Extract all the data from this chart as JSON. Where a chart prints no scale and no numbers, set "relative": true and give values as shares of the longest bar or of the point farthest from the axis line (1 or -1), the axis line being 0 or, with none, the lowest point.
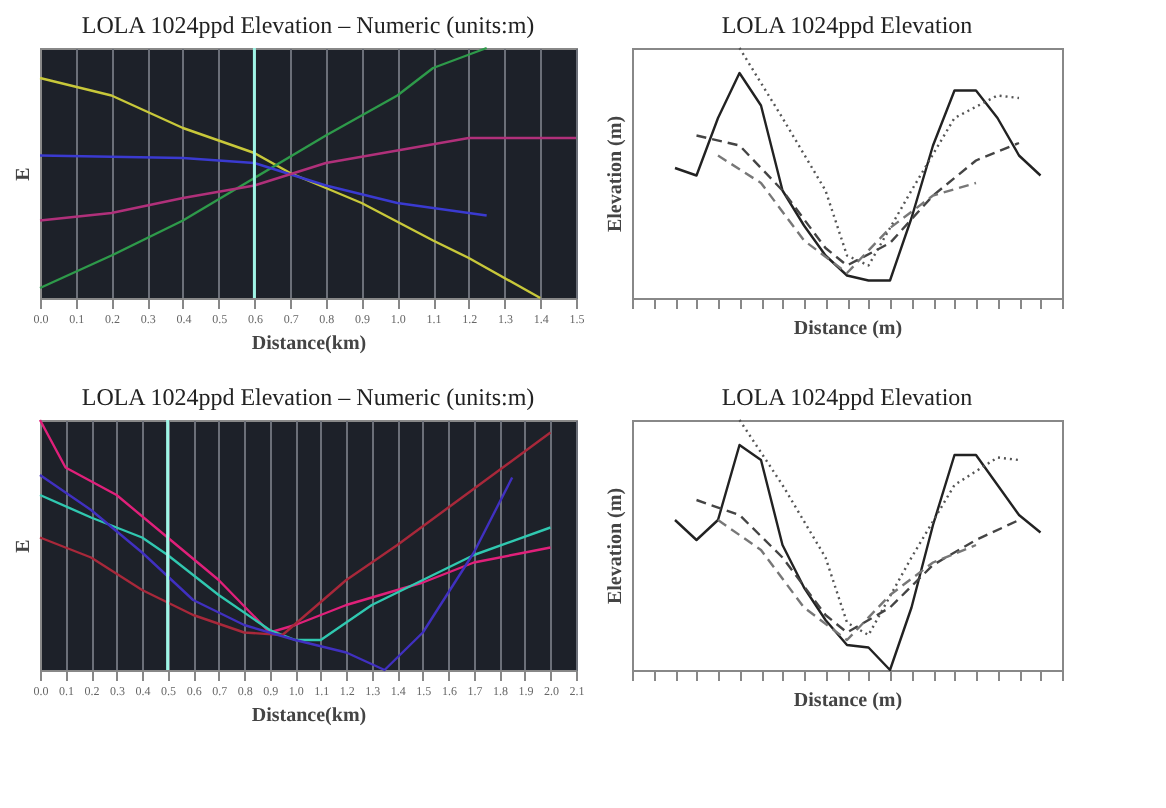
{
  "chart_data": [
    {
      "type": "line",
      "title": "LOLA 1024ppd Elevation – Numeric (units:m)",
      "xlabel": "Distance(km)",
      "ylabel": "E",
      "relative": true,
      "grid": "x",
      "tick_labels": "x",
      "xlim": [
        0,
        1.5
      ],
      "xticks": [
        {
          "value": 0,
          "label": "0.0"
        },
        0.1,
        0.2,
        0.3,
        0.4,
        0.5,
        0.6,
        0.7,
        0.8,
        0.9,
        {
          "value": 1,
          "label": "1.0"
        },
        1.1,
        1.2,
        1.3,
        1.4,
        1.5
      ],
      "ref_lines": [
        {
          "axis": "x",
          "value": 0.6,
          "color": "#9ff5e6"
        }
      ],
      "series": [
        {
          "color": "#c8c83a",
          "x": [
            0,
            0.2,
            0.4,
            0.6,
            0.7,
            0.9,
            1.1,
            1.2,
            1.4
          ],
          "values": [
            0.88,
            0.81,
            0.68,
            0.58,
            0.5,
            0.38,
            0.23,
            0.16,
            0
          ]
        },
        {
          "color": "#2e9a4a",
          "x": [
            0,
            0.2,
            0.4,
            0.6,
            0.8,
            1.0,
            1.1,
            1.25
          ],
          "values": [
            0.04,
            0.17,
            0.31,
            0.48,
            0.65,
            0.81,
            0.92,
            1.0
          ]
        },
        {
          "color": "#3a3ad0",
          "x": [
            0,
            0.4,
            0.6,
            0.8,
            1.0,
            1.25
          ],
          "values": [
            0.57,
            0.56,
            0.54,
            0.45,
            0.38,
            0.33
          ]
        },
        {
          "color": "#b0307a",
          "x": [
            0,
            0.2,
            0.4,
            0.6,
            0.8,
            1.0,
            1.2,
            1.5
          ],
          "values": [
            0.31,
            0.34,
            0.4,
            0.45,
            0.54,
            0.59,
            0.64,
            0.64
          ]
        }
      ]
    },
    {
      "type": "line",
      "title": "LOLA 1024ppd Elevation",
      "xlabel": "Distance (m)",
      "ylabel": "Elevation (m)",
      "relative": true,
      "grid": false,
      "tick_labels": false,
      "categories": [
        null,
        null,
        null,
        null,
        null,
        null,
        null,
        null,
        null,
        null,
        null,
        null,
        null,
        null,
        null,
        null,
        null,
        null,
        null,
        null,
        null
      ],
      "series": [
        {
          "color": "#222222",
          "line_style": "solid",
          "values": [
            null,
            null,
            0.52,
            0.49,
            0.72,
            0.9,
            0.77,
            0.43,
            0.29,
            0.17,
            0.09,
            0.07,
            0.07,
            0.32,
            0.61,
            0.83,
            0.83,
            0.72,
            0.57,
            0.49,
            null
          ]
        },
        {
          "color": "#555555",
          "line_style": "dotted",
          "values": [
            null,
            null,
            null,
            null,
            null,
            1.0,
            null,
            0.72,
            null,
            0.43,
            0.17,
            0.13,
            null,
            0.43,
            null,
            0.72,
            null,
            0.81,
            0.8,
            null,
            null
          ]
        },
        {
          "color": "#444444",
          "line_style": "dashed",
          "values": [
            null,
            null,
            null,
            0.65,
            null,
            0.61,
            null,
            0.43,
            null,
            0.2,
            0.13,
            null,
            0.22,
            null,
            0.41,
            null,
            0.55,
            null,
            0.62,
            null,
            null
          ]
        },
        {
          "color": "#777777",
          "line_style": "dashed",
          "values": [
            null,
            null,
            null,
            null,
            0.57,
            null,
            0.46,
            null,
            0.23,
            null,
            0.1,
            null,
            0.28,
            null,
            0.41,
            null,
            0.46,
            null,
            null,
            null,
            null
          ]
        }
      ]
    },
    {
      "type": "line",
      "title": "LOLA 1024ppd Elevation – Numeric (units:m)",
      "xlabel": "Distance(km)",
      "ylabel": "E",
      "relative": true,
      "grid": "x",
      "tick_labels": "x",
      "xlim": [
        0,
        2.1
      ],
      "xticks": [
        {
          "value": 0,
          "label": "0.0"
        },
        0.1,
        0.2,
        0.3,
        0.4,
        0.5,
        0.6,
        0.7,
        0.8,
        0.9,
        {
          "value": 1,
          "label": "1.0"
        },
        1.1,
        1.2,
        1.3,
        1.4,
        1.5,
        1.6,
        1.7,
        1.8,
        1.9,
        {
          "value": 2,
          "label": "2.0"
        },
        2.1
      ],
      "ref_lines": [
        {
          "axis": "x",
          "value": 0.5,
          "color": "#9ff5e6"
        }
      ],
      "series": [
        {
          "color": "#e0207a",
          "x": [
            0,
            0.1,
            0.3,
            0.5,
            0.7,
            0.9,
            1.0,
            1.2,
            1.5,
            1.7,
            1.9,
            2.0
          ],
          "values": [
            1.0,
            0.81,
            0.7,
            0.53,
            0.36,
            0.15,
            0.18,
            0.26,
            0.35,
            0.43,
            0.47,
            0.49
          ]
        },
        {
          "color": "#30c8b0",
          "x": [
            0,
            0.2,
            0.4,
            0.5,
            0.7,
            0.9,
            1.0,
            1.1,
            1.3,
            1.5,
            1.7,
            2.0
          ],
          "values": [
            0.7,
            0.61,
            0.53,
            0.46,
            0.3,
            0.16,
            0.12,
            0.12,
            0.26,
            0.36,
            0.46,
            0.57
          ]
        },
        {
          "color": "#a8283a",
          "x": [
            0,
            0.2,
            0.4,
            0.6,
            0.8,
            0.95,
            1.2,
            1.4,
            1.6,
            1.8,
            2.0
          ],
          "values": [
            0.53,
            0.45,
            0.32,
            0.22,
            0.15,
            0.14,
            0.36,
            0.5,
            0.65,
            0.8,
            0.95
          ]
        },
        {
          "color": "#4030c0",
          "x": [
            0,
            0.2,
            0.4,
            0.6,
            0.8,
            1.0,
            1.2,
            1.35,
            1.5,
            1.7,
            1.85
          ],
          "values": [
            0.78,
            0.64,
            0.47,
            0.28,
            0.18,
            0.12,
            0.07,
            0,
            0.15,
            0.47,
            0.77
          ]
        }
      ]
    },
    {
      "type": "line",
      "title": "LOLA 1024ppd Elevation",
      "xlabel": "Distance (m)",
      "ylabel": "Elevation (m)",
      "relative": true,
      "grid": false,
      "tick_labels": false,
      "categories": [
        null,
        null,
        null,
        null,
        null,
        null,
        null,
        null,
        null,
        null,
        null,
        null,
        null,
        null,
        null,
        null,
        null,
        null,
        null,
        null,
        null
      ],
      "series": [
        {
          "color": "#222222",
          "line_style": "solid",
          "values": [
            null,
            null,
            0.6,
            0.52,
            0.6,
            0.9,
            0.84,
            0.5,
            0.33,
            0.2,
            0.1,
            0.09,
            0.0,
            0.25,
            0.58,
            0.86,
            0.86,
            0.74,
            0.62,
            0.55,
            null
          ]
        },
        {
          "color": "#555555",
          "line_style": "dotted",
          "values": [
            null,
            null,
            null,
            null,
            null,
            1.0,
            null,
            0.74,
            null,
            0.45,
            0.19,
            0.14,
            null,
            0.45,
            null,
            0.74,
            null,
            0.85,
            0.84,
            null,
            null
          ]
        },
        {
          "color": "#444444",
          "line_style": "dashed",
          "values": [
            null,
            null,
            null,
            0.68,
            null,
            0.62,
            null,
            0.45,
            null,
            0.22,
            0.15,
            null,
            0.25,
            null,
            0.42,
            null,
            0.52,
            null,
            0.6,
            null,
            null
          ]
        },
        {
          "color": "#777777",
          "line_style": "dashed",
          "values": [
            null,
            null,
            null,
            null,
            0.6,
            null,
            0.48,
            null,
            0.25,
            null,
            0.12,
            null,
            0.3,
            null,
            0.43,
            null,
            0.5,
            null,
            null,
            null,
            null
          ]
        }
      ]
    }
  ]
}
